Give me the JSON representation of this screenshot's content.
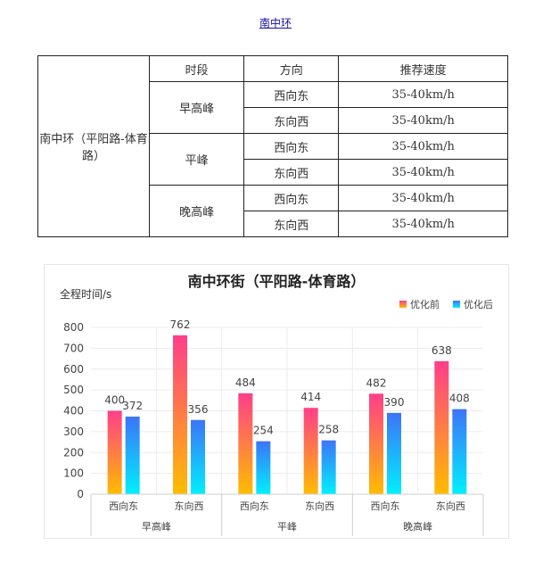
{
  "link": {
    "text": "南中环"
  },
  "table": {
    "headers": [
      "时段",
      "方向",
      "推荐速度"
    ],
    "road": "南中环（平阳路-体育路）",
    "periods": [
      {
        "name": "早高峰",
        "rows": [
          {
            "direction": "西向东",
            "speed": "35-40km/h"
          },
          {
            "direction": "东向西",
            "speed": "35-40km/h"
          }
        ]
      },
      {
        "name": "平峰",
        "rows": [
          {
            "direction": "西向东",
            "speed": "35-40km/h"
          },
          {
            "direction": "东向西",
            "speed": "35-40km/h"
          }
        ]
      },
      {
        "name": "晚高峰",
        "rows": [
          {
            "direction": "西向东",
            "speed": "35-40km/h"
          },
          {
            "direction": "东向西",
            "speed": "35-40km/h"
          }
        ]
      }
    ]
  },
  "chart_data": {
    "type": "bar",
    "title": "南中环街（平阳路-体育路）",
    "ylabel": "全程时间/s",
    "xlabel": "",
    "ylim": [
      0,
      800
    ],
    "yticks": [
      0,
      100,
      200,
      300,
      400,
      500,
      600,
      700,
      800
    ],
    "legend_position": "top-right",
    "categories": [
      "西向东",
      "东向西",
      "西向东",
      "东向西",
      "西向东",
      "东向西"
    ],
    "groups": [
      {
        "label": "早高峰",
        "span": 2
      },
      {
        "label": "平峰",
        "span": 2
      },
      {
        "label": "晚高峰",
        "span": 2
      }
    ],
    "series": [
      {
        "name": "优化前",
        "values": [
          400,
          762,
          484,
          414,
          482,
          638
        ],
        "color_top": "#ff3e8a",
        "color_bottom": "#ffbd00"
      },
      {
        "name": "优化后",
        "values": [
          372,
          356,
          254,
          258,
          390,
          408
        ],
        "color_top": "#3d74f7",
        "color_bottom": "#00f0ff"
      }
    ]
  }
}
